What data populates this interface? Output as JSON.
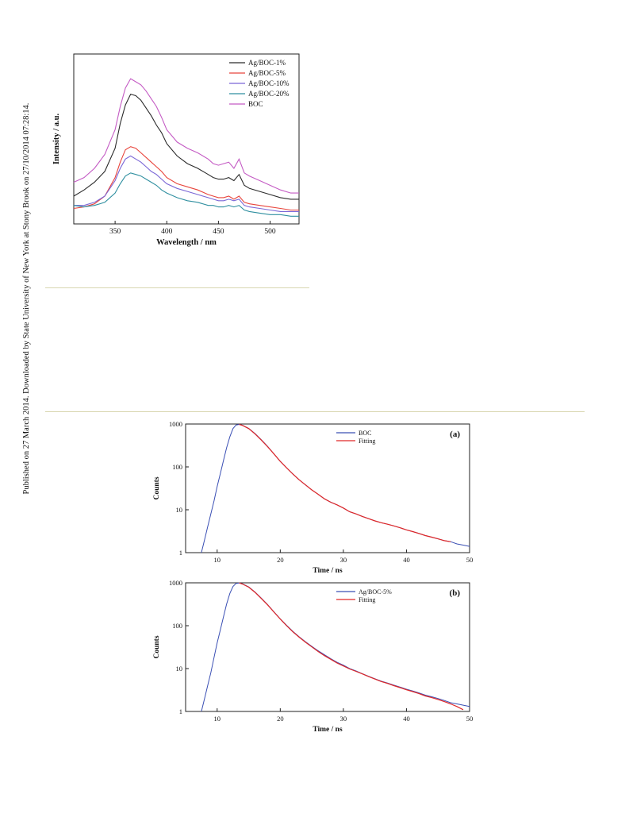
{
  "side_note": "Published on 27 March 2014. Downloaded by State University of New York at Stony Brook on 27/10/2014 07:28:14.",
  "chart_data": [
    {
      "type": "line",
      "id": "pl",
      "xlabel": "Wavelength / nm",
      "ylabel": "Intensity / a.u.",
      "xlim": [
        310,
        528
      ],
      "ylim": [
        0,
        110
      ],
      "xticks": [
        350,
        400,
        450,
        500
      ],
      "yticks_visible": false,
      "legend_position": "top-right",
      "series": [
        {
          "name": "Ag/BOC-1%",
          "color": "#2b2b2b",
          "x": [
            310,
            320,
            330,
            340,
            350,
            355,
            360,
            365,
            370,
            375,
            380,
            385,
            390,
            395,
            400,
            410,
            420,
            430,
            440,
            445,
            450,
            455,
            460,
            465,
            470,
            475,
            480,
            490,
            500,
            510,
            520,
            528
          ],
          "y": [
            18,
            22,
            27,
            34,
            49,
            65,
            77,
            84,
            83,
            80,
            75,
            70,
            64,
            59,
            52,
            44,
            39,
            36,
            32,
            30,
            29,
            29,
            30,
            28,
            32,
            25,
            23,
            21,
            19,
            17,
            16,
            16
          ]
        },
        {
          "name": "Ag/BOC-5%",
          "color": "#e8453c",
          "x": [
            310,
            320,
            330,
            340,
            350,
            355,
            360,
            365,
            370,
            375,
            380,
            385,
            390,
            395,
            400,
            410,
            420,
            430,
            440,
            445,
            450,
            455,
            460,
            465,
            470,
            475,
            480,
            490,
            500,
            510,
            520,
            528
          ],
          "y": [
            10,
            11,
            13,
            18,
            30,
            40,
            48,
            50,
            49,
            46,
            43,
            40,
            37,
            34,
            30,
            26,
            24,
            22,
            19,
            18,
            17,
            17,
            18,
            16,
            18,
            14,
            13,
            12,
            11,
            10,
            9,
            9
          ]
        },
        {
          "name": "Ag/BOC-10%",
          "color": "#7a66d6",
          "x": [
            310,
            320,
            330,
            340,
            350,
            355,
            360,
            365,
            370,
            375,
            380,
            385,
            390,
            395,
            400,
            410,
            420,
            430,
            440,
            445,
            450,
            455,
            460,
            465,
            470,
            475,
            480,
            490,
            500,
            510,
            520,
            528
          ],
          "y": [
            12,
            12,
            14,
            18,
            28,
            36,
            42,
            44,
            42,
            40,
            37,
            34,
            32,
            29,
            26,
            23,
            21,
            19,
            17,
            16,
            15,
            15,
            16,
            15,
            16,
            12,
            11,
            10,
            9,
            8,
            8,
            8
          ]
        },
        {
          "name": "Ag/BOC-20%",
          "color": "#2f8fa0",
          "x": [
            310,
            320,
            330,
            340,
            350,
            355,
            360,
            365,
            370,
            375,
            380,
            385,
            390,
            395,
            400,
            410,
            420,
            430,
            440,
            445,
            450,
            455,
            460,
            465,
            470,
            475,
            480,
            490,
            500,
            510,
            520,
            528
          ],
          "y": [
            12,
            11,
            12,
            14,
            20,
            26,
            31,
            33,
            32,
            31,
            29,
            27,
            25,
            22,
            20,
            17,
            15,
            14,
            12,
            12,
            11,
            11,
            12,
            11,
            12,
            9,
            8,
            7,
            6,
            6,
            5,
            5
          ]
        },
        {
          "name": "BOC",
          "color": "#c45bc4",
          "x": [
            310,
            320,
            330,
            340,
            350,
            355,
            360,
            365,
            370,
            375,
            380,
            385,
            390,
            395,
            400,
            410,
            420,
            430,
            440,
            445,
            450,
            455,
            460,
            465,
            470,
            475,
            480,
            490,
            500,
            510,
            520,
            528
          ],
          "y": [
            27,
            30,
            36,
            45,
            61,
            76,
            88,
            94,
            92,
            90,
            86,
            81,
            76,
            69,
            61,
            53,
            49,
            46,
            42,
            39,
            38,
            39,
            40,
            36,
            42,
            33,
            31,
            28,
            25,
            22,
            20,
            20
          ]
        }
      ]
    },
    {
      "type": "line",
      "id": "a",
      "panel_label": "(a)",
      "xlabel": "Time / ns",
      "ylabel": "Counts",
      "xlim": [
        5,
        50
      ],
      "yscale": "log",
      "ylim": [
        1,
        1000
      ],
      "xticks": [
        10,
        20,
        30,
        40,
        50
      ],
      "yticks": [
        1,
        10,
        100,
        1000
      ],
      "legend_position": "top-center",
      "series": [
        {
          "name": "BOC",
          "color": "#3a4fb4",
          "x": [
            7.5,
            8,
            8.5,
            9,
            9.5,
            10,
            10.5,
            11,
            11.5,
            12,
            12.5,
            13,
            13.5,
            14,
            15,
            16,
            17,
            18,
            19,
            20,
            21,
            22,
            23,
            24,
            25,
            26,
            27,
            28,
            29,
            30,
            31,
            32,
            33,
            34,
            35,
            36,
            37,
            38,
            39,
            40,
            41,
            42,
            43,
            44,
            45,
            46,
            47,
            48,
            49,
            50
          ],
          "y": [
            1,
            2,
            4,
            8,
            16,
            35,
            70,
            140,
            280,
            500,
            780,
            950,
            980,
            940,
            790,
            600,
            430,
            300,
            200,
            135,
            95,
            68,
            50,
            38,
            29,
            23,
            18,
            15,
            13,
            11,
            9,
            8,
            7,
            6.2,
            5.5,
            5,
            4.6,
            4.2,
            3.8,
            3.4,
            3.1,
            2.8,
            2.5,
            2.3,
            2.1,
            1.9,
            1.8,
            1.6,
            1.5,
            1.4
          ]
        },
        {
          "name": "Fitting",
          "color": "#e02828",
          "x": [
            13.5,
            14,
            15,
            16,
            17,
            18,
            19,
            20,
            21,
            22,
            23,
            24,
            25,
            26,
            27,
            28,
            29,
            30,
            31,
            32,
            33,
            34,
            35,
            36,
            37,
            38,
            39,
            40,
            41,
            42,
            43,
            44,
            45,
            46,
            47
          ],
          "y": [
            980,
            930,
            780,
            590,
            420,
            295,
            200,
            135,
            95,
            68,
            50,
            38,
            29,
            23,
            18,
            15,
            13,
            11,
            9,
            8,
            7,
            6.2,
            5.5,
            5,
            4.6,
            4.2,
            3.8,
            3.4,
            3.1,
            2.8,
            2.5,
            2.3,
            2.1,
            1.9,
            1.8
          ]
        }
      ]
    },
    {
      "type": "line",
      "id": "b",
      "panel_label": "(b)",
      "xlabel": "Time / ns",
      "ylabel": "Counts",
      "xlim": [
        5,
        50
      ],
      "yscale": "log",
      "ylim": [
        1,
        1000
      ],
      "xticks": [
        10,
        20,
        30,
        40,
        50
      ],
      "yticks": [
        1,
        10,
        100,
        1000
      ],
      "legend_position": "top-center",
      "series": [
        {
          "name": "Ag/BOC-5%",
          "color": "#3a4fb4",
          "x": [
            7.5,
            8,
            8.5,
            9,
            9.5,
            10,
            10.5,
            11,
            11.5,
            12,
            12.5,
            13,
            13.5,
            14,
            15,
            16,
            17,
            18,
            19,
            20,
            21,
            22,
            23,
            24,
            25,
            26,
            27,
            28,
            29,
            30,
            31,
            32,
            33,
            34,
            35,
            36,
            37,
            38,
            39,
            40,
            41,
            42,
            43,
            44,
            45,
            46,
            47,
            48,
            49,
            50
          ],
          "y": [
            1,
            2,
            4,
            8,
            18,
            40,
            80,
            160,
            320,
            560,
            820,
            970,
            990,
            950,
            800,
            610,
            440,
            310,
            210,
            145,
            102,
            74,
            55,
            42,
            33,
            26,
            21,
            17,
            14,
            12,
            10,
            8.8,
            7.6,
            6.6,
            5.8,
            5.1,
            4.6,
            4.1,
            3.7,
            3.3,
            3,
            2.7,
            2.4,
            2.2,
            2,
            1.8,
            1.6,
            1.5,
            1.4,
            1.3
          ]
        },
        {
          "name": "Fitting",
          "color": "#e02828",
          "x": [
            13.5,
            14,
            15,
            16,
            17,
            18,
            19,
            20,
            21,
            22,
            23,
            24,
            25,
            26,
            27,
            28,
            29,
            30,
            31,
            32,
            33,
            34,
            35,
            36,
            37,
            38,
            39,
            40,
            41,
            42,
            43,
            44,
            45,
            46,
            47,
            48,
            49
          ],
          "y": [
            990,
            940,
            790,
            600,
            430,
            305,
            207,
            143,
            100,
            72,
            54,
            41,
            32,
            25,
            20,
            16.5,
            13.5,
            11.5,
            9.8,
            8.6,
            7.5,
            6.5,
            5.7,
            5,
            4.5,
            4,
            3.6,
            3.2,
            2.9,
            2.6,
            2.3,
            2.1,
            1.9,
            1.7,
            1.5,
            1.3,
            1.1
          ]
        }
      ]
    }
  ]
}
